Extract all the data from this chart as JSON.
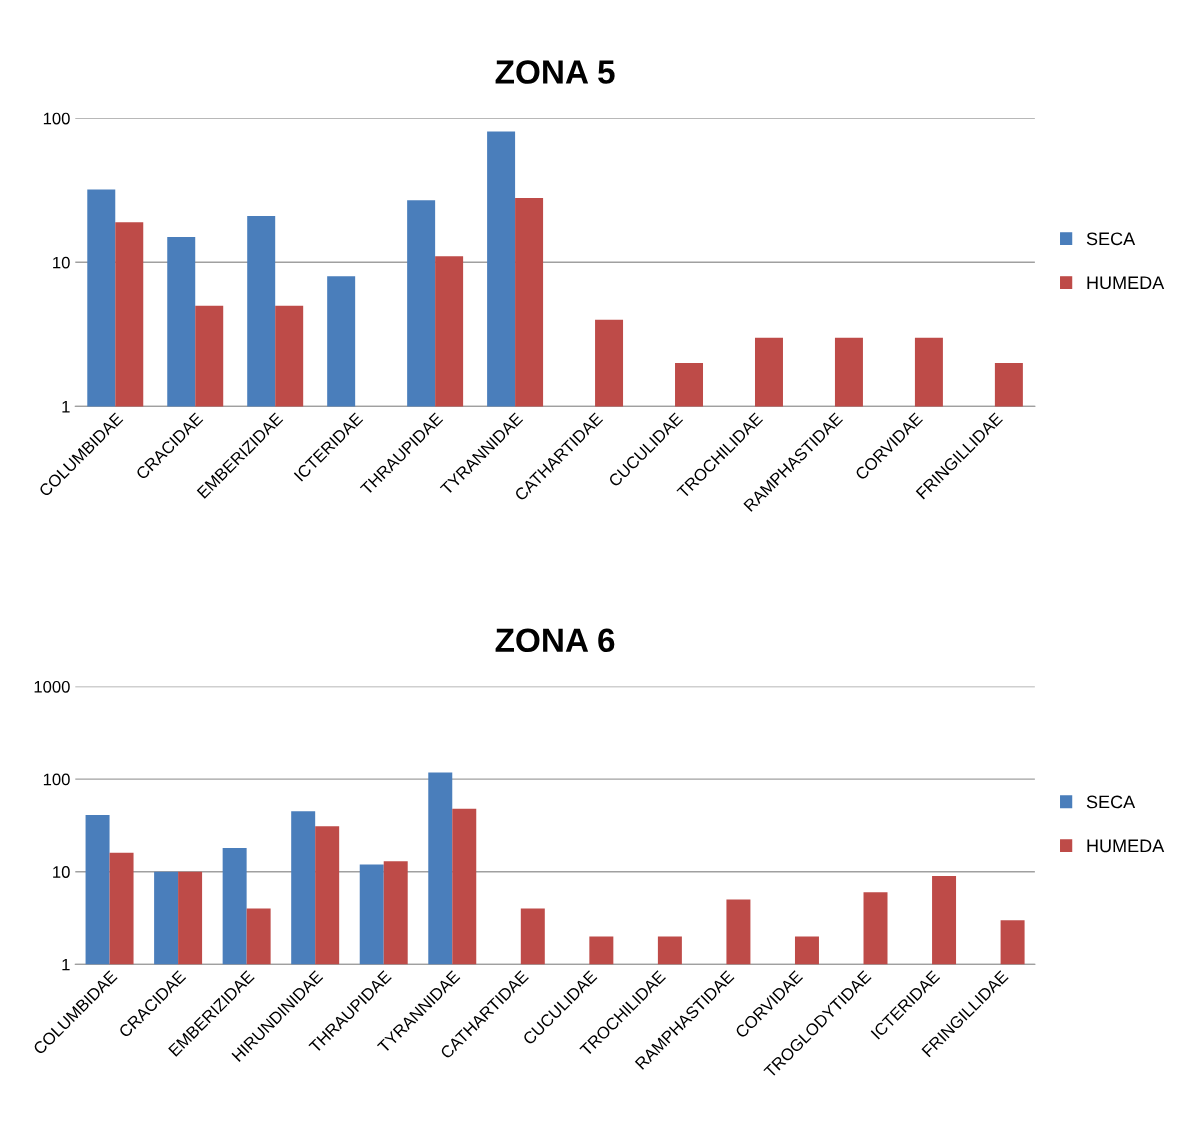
{
  "chart_data": [
    {
      "type": "bar",
      "title": "ZONA 5",
      "categories": [
        "COLUMBIDAE",
        "CRACIDAE",
        "EMBERIZIDAE",
        "ICTERIDAE",
        "THRAUPIDAE",
        "TYRANNIDAE",
        "CATHARTIDAE",
        "CUCULIDAE",
        "TROCHILIDAE",
        "RAMPHASTIDAE",
        "CORVIDAE",
        "FRINGILLIDAE"
      ],
      "series": [
        {
          "name": "SECA",
          "color": "#4a7ebb",
          "values": [
            32,
            15,
            21,
            8,
            27,
            81,
            null,
            null,
            null,
            null,
            null,
            null
          ]
        },
        {
          "name": "HUMEDA",
          "color": "#be4b48",
          "values": [
            19,
            5,
            5,
            null,
            11,
            28,
            4,
            2,
            3,
            3,
            3,
            2
          ]
        }
      ],
      "log": true,
      "ylim": [
        1,
        100
      ],
      "yticks": [
        1,
        10,
        100
      ],
      "grid": "y",
      "legend": "right"
    },
    {
      "type": "bar",
      "title": "ZONA 6",
      "categories": [
        "COLUMBIDAE",
        "CRACIDAE",
        "EMBERIZIDAE",
        "HIRUNDINIDAE",
        "THRAUPIDAE",
        "TYRANNIDAE",
        "CATHARTIDAE",
        "CUCULIDAE",
        "TROCHILIDAE",
        "RAMPHASTIDAE",
        "CORVIDAE",
        "TROGLODYTIDAE",
        "ICTERIDAE",
        "FRINGILLIDAE"
      ],
      "series": [
        {
          "name": "SECA",
          "color": "#4a7ebb",
          "values": [
            41,
            10,
            18,
            45,
            12,
            118,
            null,
            null,
            null,
            null,
            null,
            null,
            null,
            null
          ]
        },
        {
          "name": "HUMEDA",
          "color": "#be4b48",
          "values": [
            16,
            10,
            4,
            31,
            13,
            48,
            4,
            2,
            2,
            5,
            2,
            6,
            9,
            3
          ]
        }
      ],
      "log": true,
      "ylim": [
        1,
        1000
      ],
      "yticks": [
        1,
        10,
        100,
        1000
      ],
      "grid": "y",
      "legend": "right"
    }
  ]
}
